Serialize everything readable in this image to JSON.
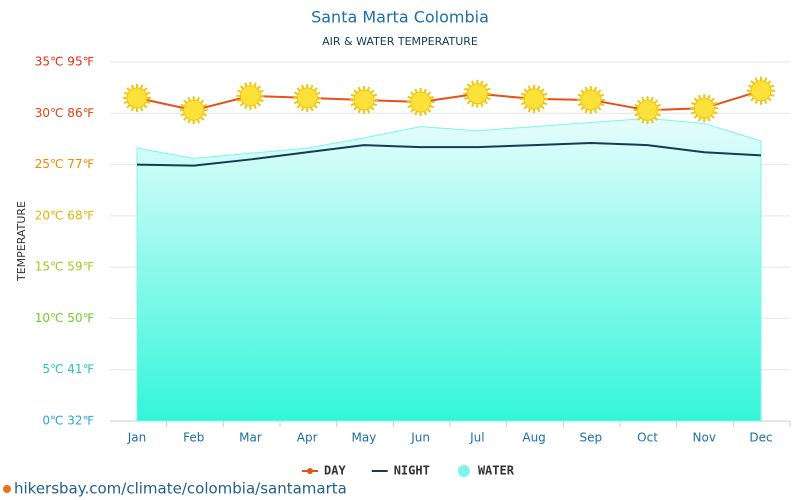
{
  "chart_data": {
    "type": "line",
    "title": "Santa Marta Colombia",
    "subtitle": "AIR & WATER TEMPERATURE",
    "y_label": "TEMPERATURE",
    "categories": [
      "Jan",
      "Feb",
      "Mar",
      "Apr",
      "May",
      "Jun",
      "Jul",
      "Aug",
      "Sep",
      "Oct",
      "Nov",
      "Dec"
    ],
    "series": [
      {
        "name": "DAY",
        "color": "#e8501a",
        "values": [
          31.5,
          30.3,
          31.7,
          31.5,
          31.3,
          31.1,
          31.9,
          31.4,
          31.3,
          30.3,
          30.5,
          32.2
        ]
      },
      {
        "name": "NIGHT",
        "color": "#133c55",
        "values": [
          25.0,
          24.9,
          25.5,
          26.2,
          26.9,
          26.7,
          26.7,
          26.9,
          27.1,
          26.9,
          26.2,
          25.9
        ]
      },
      {
        "name": "WATER",
        "color": "#7ff5ea",
        "values": [
          26.6,
          25.6,
          26.1,
          26.6,
          27.6,
          28.7,
          28.3,
          28.7,
          29.1,
          29.5,
          29.0,
          27.3
        ]
      }
    ],
    "ylim": [
      0,
      35
    ],
    "yticks": [
      {
        "value": 0,
        "label": "0℃ 32℉"
      },
      {
        "value": 5,
        "label": "5℃ 41℉"
      },
      {
        "value": 10,
        "label": "10℃ 50℉"
      },
      {
        "value": 15,
        "label": "15℃ 59℉"
      },
      {
        "value": 20,
        "label": "20℃ 68℉"
      },
      {
        "value": 25,
        "label": "25℃ 77℉"
      },
      {
        "value": 30,
        "label": "30℃ 86℉"
      },
      {
        "value": 35,
        "label": "35℃ 95℉"
      }
    ],
    "ytick_colors": [
      "#2aa8d6",
      "#2bc1c8",
      "#6fcd2a",
      "#a6c81d",
      "#e0b700",
      "#f08a00",
      "#e5400f",
      "#e5300f"
    ],
    "grid": true,
    "source": "hikersbay.com/climate/colombia/santamarta"
  }
}
